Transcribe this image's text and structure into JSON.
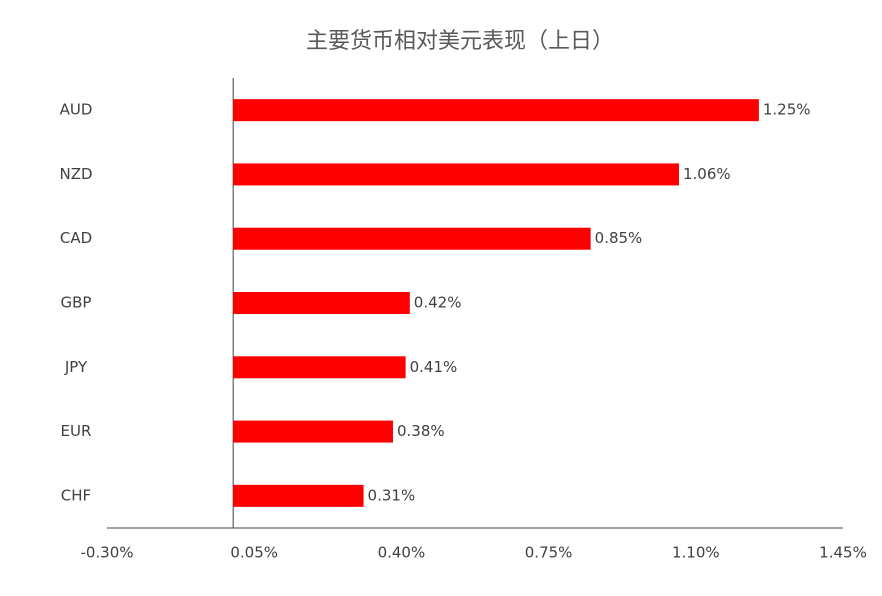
{
  "chart_data": {
    "type": "barh",
    "title": "主要货币相对美元表现（上日）",
    "categories": [
      "AUD",
      "NZD",
      "CAD",
      "GBP",
      "JPY",
      "EUR",
      "CHF"
    ],
    "values": [
      1.25,
      1.06,
      0.85,
      0.42,
      0.41,
      0.38,
      0.31
    ],
    "value_labels": [
      "1.25%",
      "1.06%",
      "0.85%",
      "0.42%",
      "0.41%",
      "0.38%",
      "0.31%"
    ],
    "color": "#ff0000",
    "xlim": [
      -0.3,
      1.45
    ],
    "xticks": [
      {
        "value": -0.3,
        "label": "-0.30%"
      },
      {
        "value": 0.05,
        "label": "0.05%"
      },
      {
        "value": 0.4,
        "label": "0.40%"
      },
      {
        "value": 0.75,
        "label": "0.75%"
      },
      {
        "value": 1.1,
        "label": "1.10%"
      },
      {
        "value": 1.45,
        "label": "1.45%"
      }
    ],
    "grid": false
  }
}
